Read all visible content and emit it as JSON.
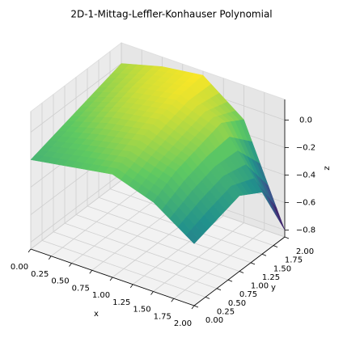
{
  "chart_data": {
    "type": "surface",
    "title": "2D-1-Mittag-Leffler-Konhauser Polynomial",
    "xlabel": "x",
    "ylabel": "y",
    "zlabel": "z",
    "x": [
      0,
      0.5,
      1,
      1.5,
      2
    ],
    "y": [
      0,
      0.5,
      1,
      1.5,
      2
    ],
    "z": [
      [
        -0.2,
        -0.15,
        -0.1,
        -0.2,
        -0.4
      ],
      [
        -0.15,
        -0.08,
        -0.02,
        -0.1,
        -0.35
      ],
      [
        -0.1,
        0,
        0.05,
        -0.05,
        -0.3
      ],
      [
        -0.05,
        0.05,
        0.1,
        0,
        -0.4
      ],
      [
        0,
        0.08,
        0.12,
        -0.1,
        -0.8
      ]
    ],
    "colormap": "viridis",
    "xlim": [
      0,
      2
    ],
    "ylim": [
      0,
      2
    ],
    "zlim": [
      -0.85,
      0.15
    ],
    "xticks": [
      {
        "value": 0,
        "label": "0.00"
      },
      {
        "value": 0.25,
        "label": "0.25"
      },
      {
        "value": 0.5,
        "label": "0.50"
      },
      {
        "value": 0.75,
        "label": "0.75"
      },
      {
        "value": 1,
        "label": "1.00"
      },
      {
        "value": 1.25,
        "label": "1.25"
      },
      {
        "value": 1.5,
        "label": "1.50"
      },
      {
        "value": 1.75,
        "label": "1.75"
      },
      {
        "value": 2,
        "label": "2.00"
      }
    ],
    "yticks": [
      {
        "value": 0,
        "label": "0.00"
      },
      {
        "value": 0.25,
        "label": "0.25"
      },
      {
        "value": 0.5,
        "label": "0.50"
      },
      {
        "value": 0.75,
        "label": "0.75"
      },
      {
        "value": 1,
        "label": "1.00"
      },
      {
        "value": 1.25,
        "label": "1.25"
      },
      {
        "value": 1.5,
        "label": "1.50"
      },
      {
        "value": 1.75,
        "label": "1.75"
      },
      {
        "value": 2,
        "label": "2.00"
      }
    ],
    "zticks": [
      {
        "value": -0.8,
        "label": "−0.8"
      },
      {
        "value": -0.6,
        "label": "−0.6"
      },
      {
        "value": -0.4,
        "label": "−0.4"
      },
      {
        "value": -0.2,
        "label": "−0.2"
      },
      {
        "value": 0,
        "label": "0.0"
      }
    ],
    "grid": true
  }
}
